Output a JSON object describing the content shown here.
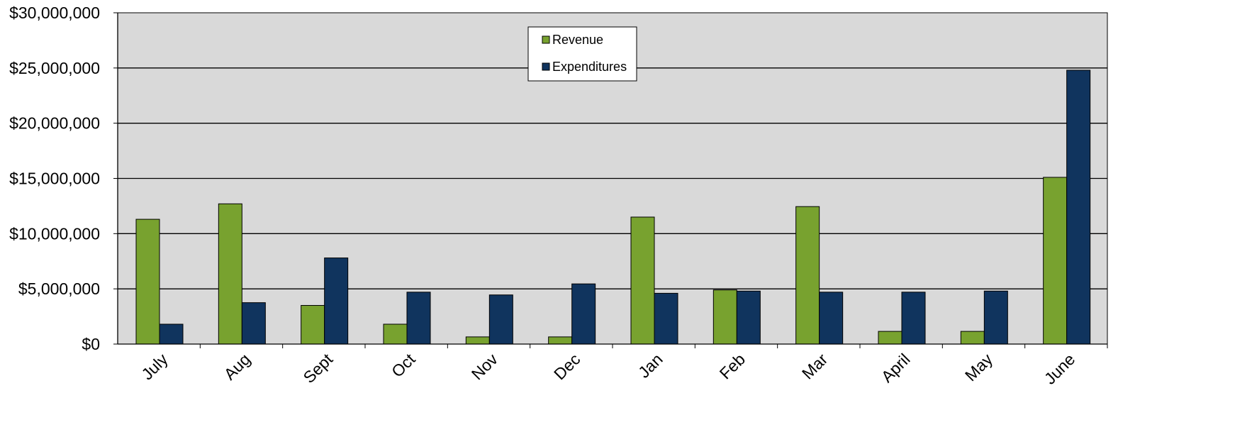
{
  "chart_data": {
    "type": "bar",
    "categories": [
      "July",
      "Aug",
      "Sept",
      "Oct",
      "Nov",
      "Dec",
      "Jan",
      "Feb",
      "Mar",
      "April",
      "May",
      "June"
    ],
    "series": [
      {
        "name": "Revenue",
        "color": "#78a22f",
        "values": [
          11300000,
          12700000,
          3500000,
          1800000,
          650000,
          650000,
          11500000,
          4900000,
          12450000,
          1150000,
          1150000,
          15100000
        ]
      },
      {
        "name": "Expenditures",
        "color": "#10345e",
        "values": [
          1800000,
          3750000,
          7800000,
          4700000,
          4450000,
          5450000,
          4600000,
          4800000,
          4700000,
          4700000,
          4800000,
          24800000
        ]
      }
    ],
    "y_tick_labels": [
      "$0",
      "$5,000,000",
      "$10,000,000",
      "$15,000,000",
      "$20,000,000",
      "$25,000,000",
      "$30,000,000"
    ],
    "ylim": [
      0,
      30000000
    ],
    "grid": true,
    "plot_background": "#d9d9d9",
    "legend_position": "top-center"
  }
}
